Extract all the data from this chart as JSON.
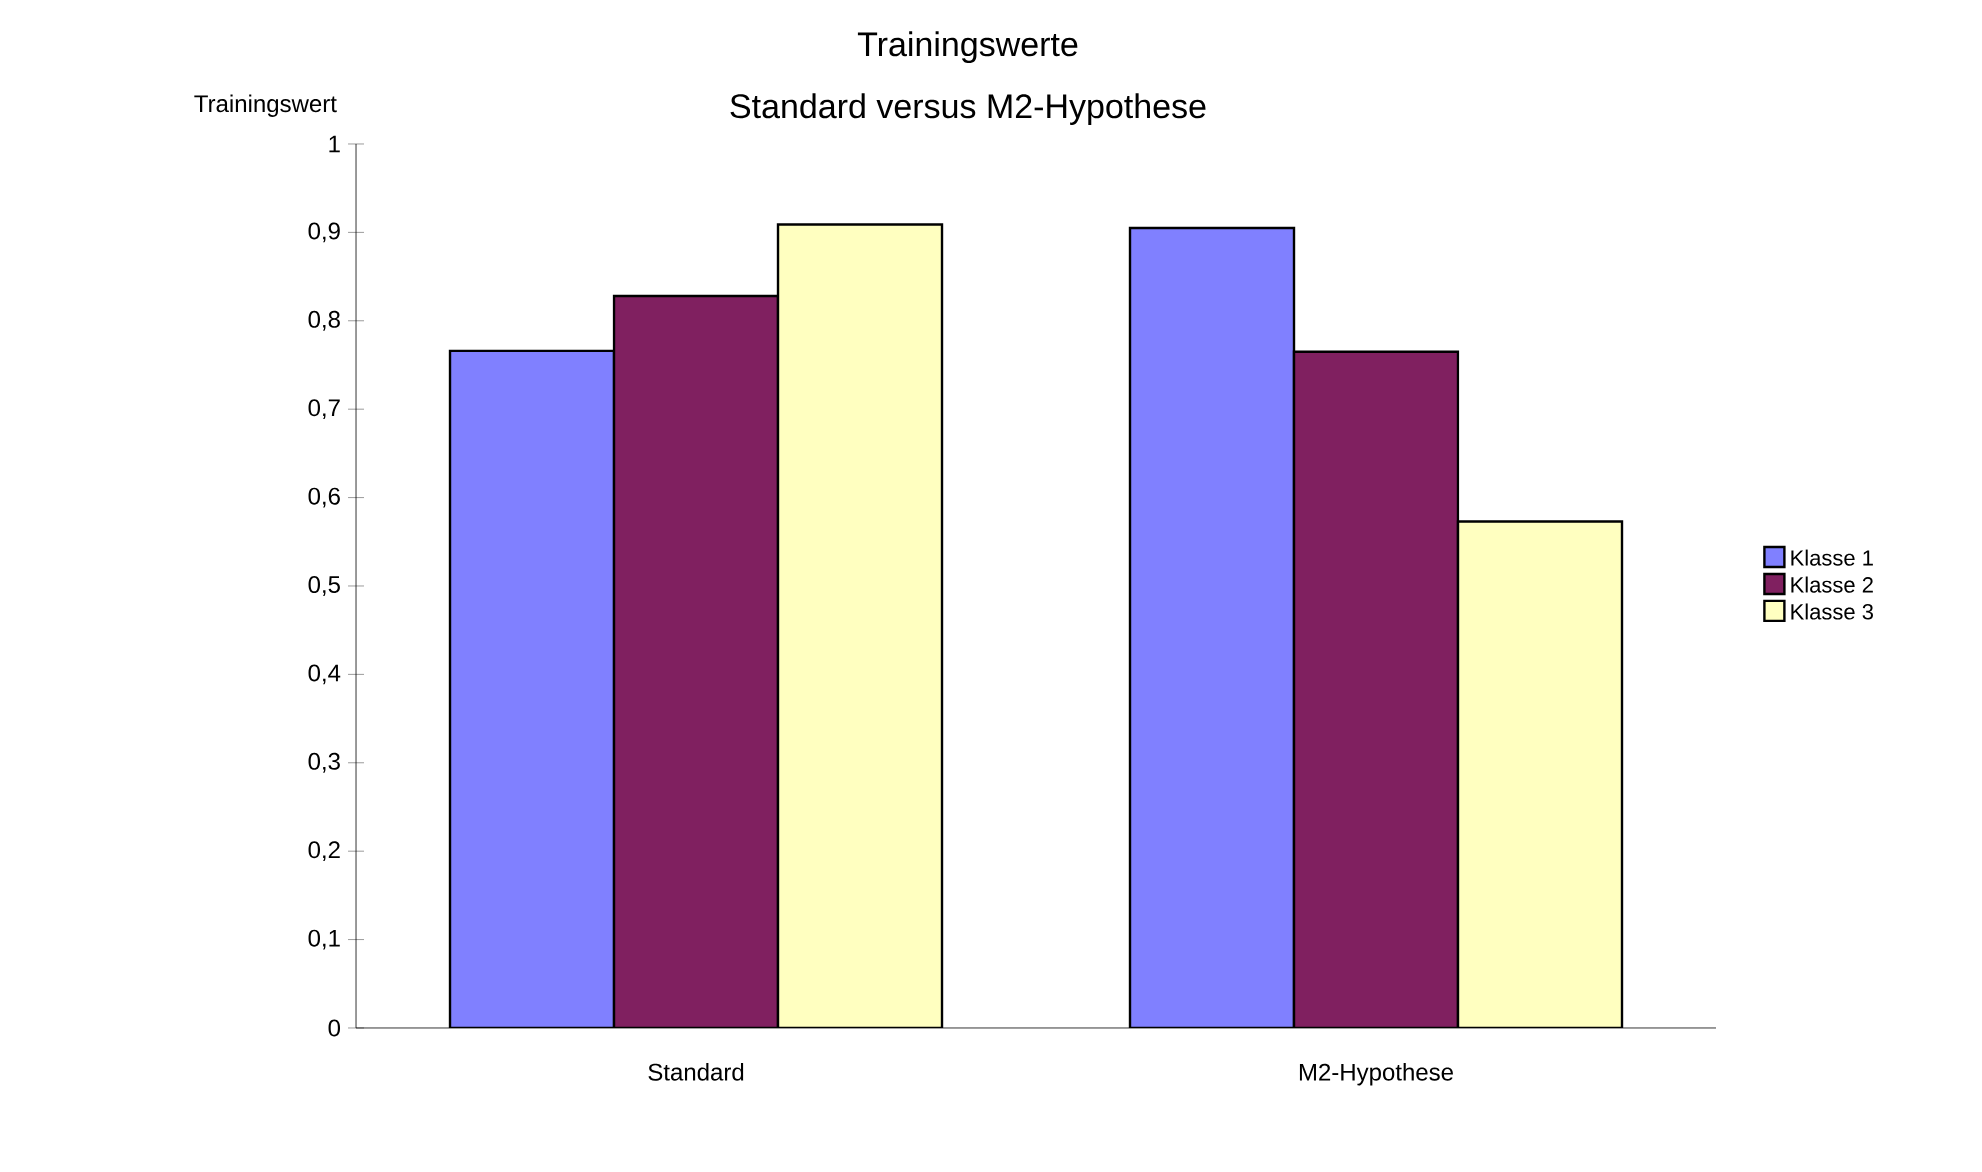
{
  "chart_data": {
    "type": "bar",
    "title": "Trainingswerte",
    "subtitle": "Standard versus M2-Hypothese",
    "ylabel": "Trainingswert",
    "categories": [
      "Standard",
      "M2-Hypothese"
    ],
    "series": [
      {
        "name": "Klasse 1",
        "color": "#8080ff",
        "values": [
          0.766,
          0.905
        ]
      },
      {
        "name": "Klasse 2",
        "color": "#802060",
        "values": [
          0.828,
          0.765
        ]
      },
      {
        "name": "Klasse 3",
        "color": "#ffffc0",
        "values": [
          0.909,
          0.573
        ]
      }
    ],
    "ylim": [
      0,
      1
    ],
    "yticks": [
      {
        "value": 0,
        "label": "0"
      },
      {
        "value": 0.1,
        "label": "0,1"
      },
      {
        "value": 0.2,
        "label": "0,2"
      },
      {
        "value": 0.3,
        "label": "0,3"
      },
      {
        "value": 0.4,
        "label": "0,4"
      },
      {
        "value": 0.5,
        "label": "0,5"
      },
      {
        "value": 0.6,
        "label": "0,6"
      },
      {
        "value": 0.7,
        "label": "0,7"
      },
      {
        "value": 0.8,
        "label": "0,8"
      },
      {
        "value": 0.9,
        "label": "0,9"
      },
      {
        "value": 1,
        "label": "1"
      }
    ],
    "grid": false,
    "legend": "right"
  }
}
